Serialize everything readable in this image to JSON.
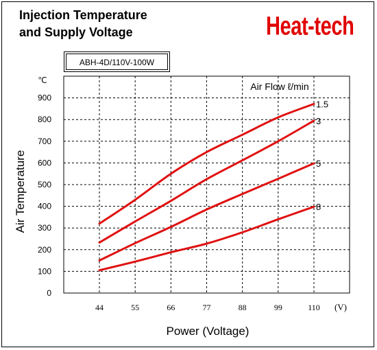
{
  "header": {
    "title": "Injection Temperature\nand Supply Voltage",
    "brand": "Heat-tech",
    "model": "ABH-4D/110V-100W"
  },
  "colors": {
    "series": "#e01010",
    "brand": "#e00000"
  },
  "chart_data": {
    "type": "line",
    "xlabel": "Power (Voltage)",
    "ylabel": "Air Temperature",
    "y_unit": "℃",
    "x_unit": "(V)",
    "legend_title": "Air Flow ℓ/min",
    "x": [
      44,
      55,
      66,
      77,
      88,
      99,
      110
    ],
    "x_ticks": [
      "44",
      "55",
      "66",
      "77",
      "88",
      "99",
      "110"
    ],
    "y_ticks": [
      "0",
      "100",
      "200",
      "300",
      "400",
      "500",
      "600",
      "700",
      "800",
      "900"
    ],
    "ylim": [
      0,
      1000
    ],
    "grid": true,
    "series": [
      {
        "name": "1.5",
        "x": [
          44,
          55,
          66,
          77,
          88,
          99,
          110
        ],
        "values": [
          320,
          430,
          550,
          650,
          730,
          810,
          872
        ]
      },
      {
        "name": "3",
        "x": [
          44,
          55,
          66,
          77,
          88,
          99,
          110
        ],
        "values": [
          233,
          330,
          425,
          525,
          612,
          700,
          795
        ]
      },
      {
        "name": "5",
        "x": [
          44,
          55,
          66,
          77,
          88,
          99,
          110
        ],
        "values": [
          150,
          230,
          305,
          385,
          457,
          527,
          598
        ]
      },
      {
        "name": "8",
        "x": [
          44,
          55,
          66,
          77,
          88,
          99,
          110
        ],
        "values": [
          105,
          145,
          188,
          228,
          280,
          340,
          398
        ]
      }
    ]
  }
}
